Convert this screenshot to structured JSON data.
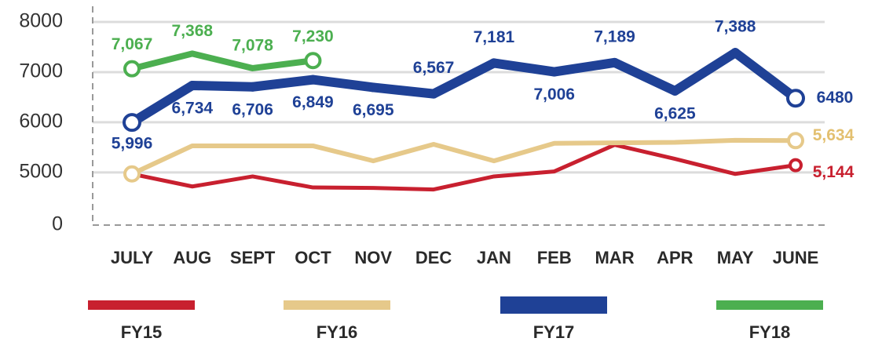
{
  "chart_data": {
    "type": "line",
    "categories": [
      "JULY",
      "AUG",
      "SEPT",
      "OCT",
      "NOV",
      "DEC",
      "JAN",
      "FEB",
      "MAR",
      "APR",
      "MAY",
      "JUNE"
    ],
    "series": [
      {
        "name": "FY15",
        "color": "#c8202f",
        "values": [
          4970,
          4720,
          4920,
          4700,
          4690,
          4660,
          4920,
          5020,
          5550,
          5270,
          4970,
          5144
        ],
        "value_labels": [
          null,
          null,
          null,
          null,
          null,
          null,
          null,
          null,
          null,
          null,
          null,
          "5,144"
        ]
      },
      {
        "name": "FY16",
        "color": "#e6c98a",
        "values": [
          4970,
          5530,
          5530,
          5530,
          5230,
          5560,
          5230,
          5580,
          5590,
          5600,
          5640,
          5634
        ],
        "value_labels": [
          null,
          null,
          null,
          null,
          null,
          null,
          null,
          null,
          null,
          null,
          null,
          "5,634"
        ]
      },
      {
        "name": "FY17",
        "color": "#1f4196",
        "values": [
          5996,
          6734,
          6706,
          6849,
          6695,
          6567,
          7181,
          7006,
          7189,
          6625,
          7388,
          6480
        ],
        "value_labels": [
          "5,996",
          "6,734",
          "6,706",
          "6,849",
          "6,695",
          "6,567",
          "7,181",
          "7,006",
          "7,189",
          "6,625",
          "7,388",
          "6480"
        ]
      },
      {
        "name": "FY18",
        "color": "#4caf50",
        "values": [
          7067,
          7368,
          7078,
          7230,
          null,
          null,
          null,
          null,
          null,
          null,
          null,
          null
        ],
        "value_labels": [
          "7,067",
          "7,368",
          "7,078",
          "7,230",
          null,
          null,
          null,
          null,
          null,
          null,
          null,
          null
        ]
      }
    ],
    "ylim": [
      3950,
      8000
    ],
    "yticks": [
      0,
      5000,
      6000,
      7000,
      8000
    ],
    "axis_break": true,
    "grid": true
  }
}
